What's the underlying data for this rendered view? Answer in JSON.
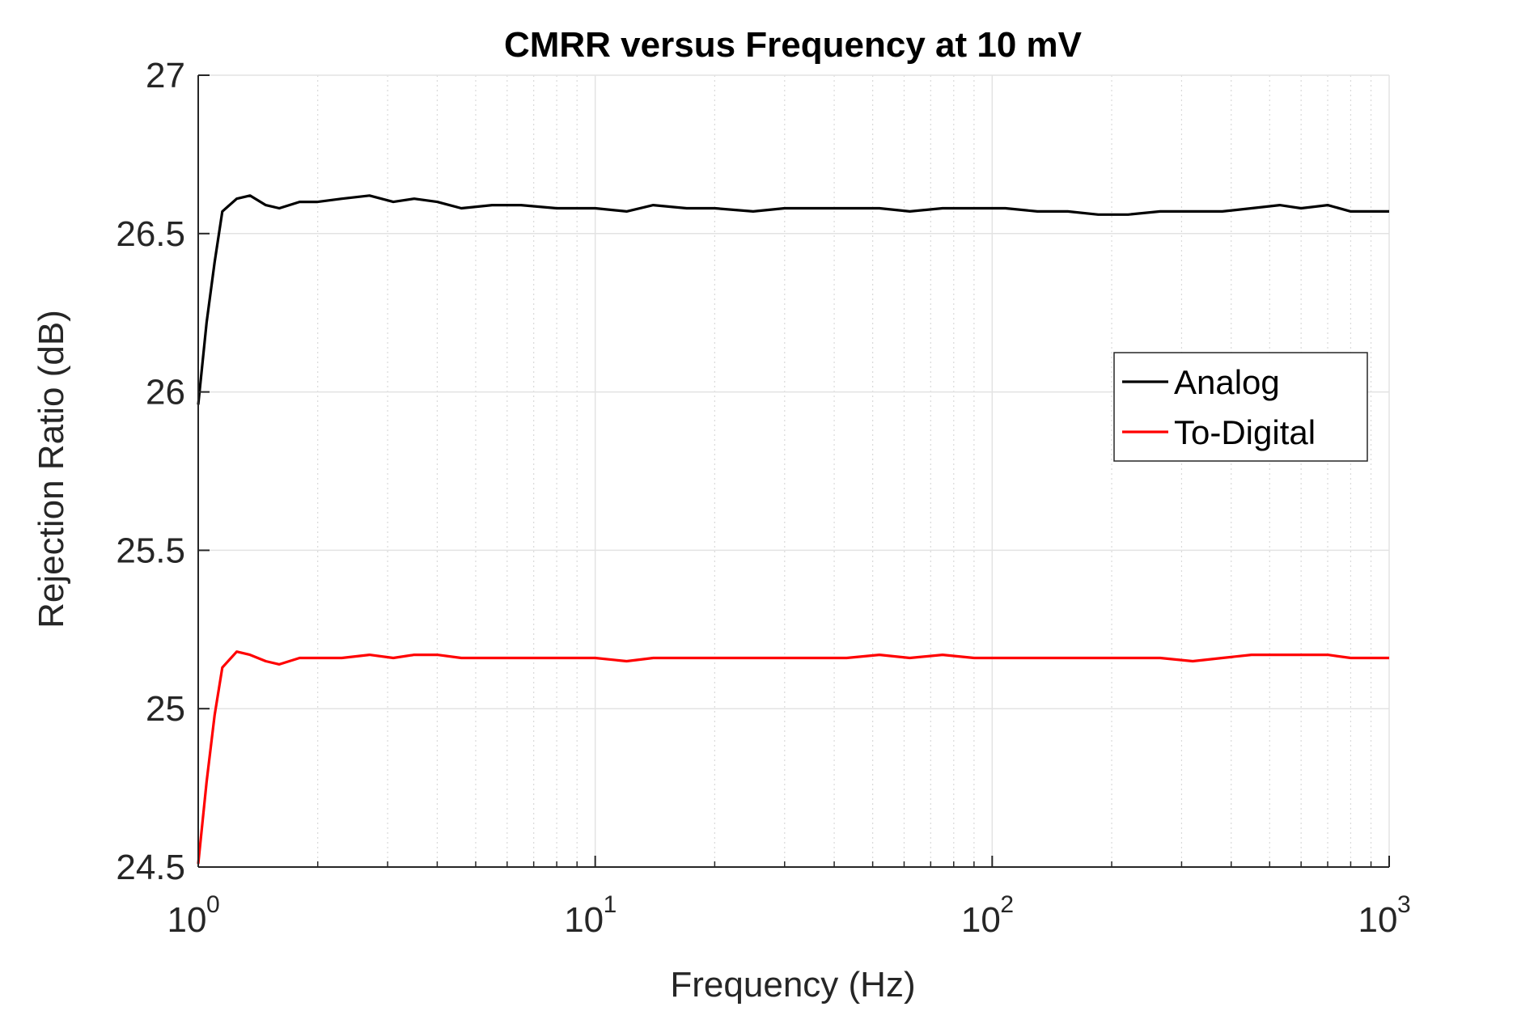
{
  "chart_data": {
    "type": "line",
    "title": "CMRR versus Frequency at 10 mV",
    "xlabel": "Frequency (Hz)",
    "ylabel": "Rejection Ratio (dB)",
    "x_scale": "log",
    "xlim": [
      1,
      1000
    ],
    "ylim": [
      24.5,
      27
    ],
    "x_ticks": [
      {
        "base": "10",
        "exp": "0",
        "value": 1
      },
      {
        "base": "10",
        "exp": "1",
        "value": 10
      },
      {
        "base": "10",
        "exp": "2",
        "value": 100
      },
      {
        "base": "10",
        "exp": "3",
        "value": 1000
      }
    ],
    "y_ticks": [
      "24.5",
      "25",
      "25.5",
      "26",
      "26.5",
      "27"
    ],
    "grid": true,
    "legend_position": "right",
    "series": [
      {
        "name": "Analog",
        "color": "#000000",
        "x": [
          1,
          1.05,
          1.1,
          1.15,
          1.25,
          1.35,
          1.48,
          1.6,
          1.8,
          2.0,
          2.3,
          2.7,
          3.1,
          3.5,
          4.0,
          4.6,
          5.5,
          6.5,
          8,
          10,
          12,
          14,
          17,
          20,
          25,
          30,
          36,
          43,
          52,
          62,
          75,
          90,
          108,
          130,
          155,
          185,
          220,
          265,
          320,
          380,
          450,
          530,
          600,
          700,
          800,
          900,
          1000
        ],
        "y": [
          25.96,
          26.22,
          26.41,
          26.57,
          26.61,
          26.62,
          26.59,
          26.58,
          26.6,
          26.6,
          26.61,
          26.62,
          26.6,
          26.61,
          26.6,
          26.58,
          26.59,
          26.59,
          26.58,
          26.58,
          26.57,
          26.59,
          26.58,
          26.58,
          26.57,
          26.58,
          26.58,
          26.58,
          26.58,
          26.57,
          26.58,
          26.58,
          26.58,
          26.57,
          26.57,
          26.56,
          26.56,
          26.57,
          26.57,
          26.57,
          26.58,
          26.59,
          26.58,
          26.59,
          26.57,
          26.57,
          26.57
        ]
      },
      {
        "name": "To-Digital",
        "color": "#ff0000",
        "x": [
          1,
          1.05,
          1.1,
          1.15,
          1.25,
          1.35,
          1.48,
          1.6,
          1.8,
          2.0,
          2.3,
          2.7,
          3.1,
          3.5,
          4.0,
          4.6,
          5.5,
          6.5,
          8,
          10,
          12,
          14,
          17,
          20,
          25,
          30,
          36,
          43,
          52,
          62,
          75,
          90,
          108,
          130,
          155,
          185,
          220,
          265,
          320,
          380,
          450,
          530,
          600,
          700,
          800,
          900,
          1000
        ],
        "y": [
          24.51,
          24.77,
          24.98,
          25.13,
          25.18,
          25.17,
          25.15,
          25.14,
          25.16,
          25.16,
          25.16,
          25.17,
          25.16,
          25.17,
          25.17,
          25.16,
          25.16,
          25.16,
          25.16,
          25.16,
          25.15,
          25.16,
          25.16,
          25.16,
          25.16,
          25.16,
          25.16,
          25.16,
          25.17,
          25.16,
          25.17,
          25.16,
          25.16,
          25.16,
          25.16,
          25.16,
          25.16,
          25.16,
          25.15,
          25.16,
          25.17,
          25.17,
          25.17,
          25.17,
          25.16,
          25.16,
          25.16
        ]
      }
    ]
  }
}
